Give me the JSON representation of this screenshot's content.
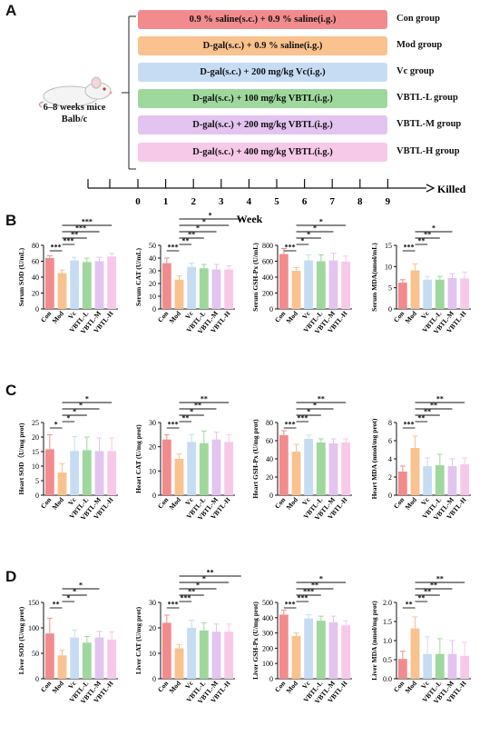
{
  "panels": {
    "a": "A",
    "b": "B",
    "c": "C",
    "d": "D"
  },
  "schematic": {
    "mouse_line1": "6–8 weeks mice",
    "mouse_line2": "Balb/c",
    "groups": [
      {
        "treatment": "0.9 % saline(s.c.) + 0.9 % saline(i.g.)",
        "name": "Con group",
        "color": "#f28b8e"
      },
      {
        "treatment": "D-gal(s.c.) + 0.9 % saline(i.g.)",
        "name": "Mod group",
        "color": "#f9c28e"
      },
      {
        "treatment": "D-gal(s.c.) + 200 mg/kg Vc(i.g.)",
        "name": "Vc group",
        "color": "#c6dcf3"
      },
      {
        "treatment": "D-gal(s.c.) + 100 mg/kg VBTL(i.g.)",
        "name": "VBTL-L group",
        "color": "#9fd89d"
      },
      {
        "treatment": "D-gal(s.c.) + 200 mg/kg VBTL(i.g.)",
        "name": "VBTL-M group",
        "color": "#e3c4f0"
      },
      {
        "treatment": "D-gal(s.c.) + 400 mg/kg VBTL(i.g.)",
        "name": "VBTL-H group",
        "color": "#f7c9e8"
      }
    ],
    "timeline": {
      "ticks": [
        "0",
        "1",
        "2",
        "3",
        "4",
        "5",
        "6",
        "7",
        "8",
        "9"
      ],
      "end_label": "Killed",
      "xlabel": "Week"
    }
  },
  "chart_data": [
    {
      "type": "bar",
      "row": "B",
      "ylabel": "Serum SOD (U/mL)",
      "ylim": [
        0,
        80
      ],
      "yticks": [
        0,
        20,
        40,
        60,
        80
      ],
      "categories": [
        "Con",
        "Mod",
        "Vc",
        "VBTL-L",
        "VBTL-M",
        "VBTL-H"
      ],
      "values": [
        64,
        45,
        61,
        59,
        60,
        66
      ],
      "errors": [
        3,
        4,
        4,
        5,
        5,
        4
      ],
      "annotations": [
        "***",
        "***",
        "**",
        "***",
        "***"
      ]
    },
    {
      "type": "bar",
      "row": "B",
      "ylabel": "Serum CAT (U/mL)",
      "ylim": [
        0,
        50
      ],
      "yticks": [
        0,
        10,
        20,
        30,
        40,
        50
      ],
      "categories": [
        "Con",
        "Mod",
        "Vc",
        "VBTL-L",
        "VBTL-M",
        "VBTL-H"
      ],
      "values": [
        36,
        23,
        33,
        32,
        31,
        31
      ],
      "errors": [
        4,
        3,
        3,
        3,
        4,
        3
      ],
      "annotations": [
        "***",
        "**",
        "**",
        "*",
        "*",
        "*"
      ]
    },
    {
      "type": "bar",
      "row": "B",
      "ylabel": "Serum GSH-Px (U/mL)",
      "ylim": [
        0,
        800
      ],
      "yticks": [
        0,
        200,
        400,
        600,
        800
      ],
      "categories": [
        "Con",
        "Mod",
        "Vc",
        "VBTL-L",
        "VBTL-M",
        "VBTL-H"
      ],
      "values": [
        690,
        480,
        610,
        600,
        610,
        595
      ],
      "errors": [
        70,
        40,
        70,
        80,
        90,
        70
      ],
      "annotations": [
        "***",
        "*",
        "*",
        "*",
        "*"
      ]
    },
    {
      "type": "bar",
      "row": "B",
      "ylabel": "Serum MDA(nmol/mL)",
      "ylim": [
        0,
        15
      ],
      "yticks": [
        0,
        5,
        10,
        15
      ],
      "categories": [
        "Con",
        "Mod",
        "Vc",
        "VBTL-L",
        "VBTL-M",
        "VBTL-H"
      ],
      "values": [
        6.2,
        9.1,
        6.9,
        6.9,
        7.3,
        7.2
      ],
      "errors": [
        0.7,
        1.5,
        0.8,
        0.8,
        1.0,
        1.5
      ],
      "annotations": [
        "***",
        "**",
        "**",
        "*"
      ]
    },
    {
      "type": "bar",
      "row": "C",
      "ylabel": "Heart SOD（U/mg prot)",
      "ylim": [
        0,
        25
      ],
      "yticks": [
        0,
        5,
        10,
        15,
        20,
        25
      ],
      "categories": [
        "Con",
        "Mod",
        "Vc",
        "VBTL-L",
        "VBTL-M",
        "VBTL-H"
      ],
      "values": [
        15.8,
        7.8,
        15.2,
        15.5,
        15.2,
        15.2
      ],
      "errors": [
        5,
        3,
        5,
        4.5,
        4.5,
        4.5
      ],
      "annotations": [
        "*",
        "*",
        "*",
        "*",
        "*"
      ]
    },
    {
      "type": "bar",
      "row": "C",
      "ylabel": "Heart CAT (U/mg prot)",
      "ylim": [
        0,
        30
      ],
      "yticks": [
        0,
        10,
        20,
        30
      ],
      "categories": [
        "Con",
        "Mod",
        "Vc",
        "VBTL-L",
        "VBTL-M",
        "VBTL-H"
      ],
      "values": [
        23,
        15,
        22,
        21.5,
        23,
        22
      ],
      "errors": [
        2,
        2,
        3,
        5,
        3,
        3
      ],
      "annotations": [
        "***",
        "**",
        "*",
        "**",
        "**"
      ]
    },
    {
      "type": "bar",
      "row": "C",
      "ylabel": "Heart GSH-Px (U/mg prot)",
      "ylim": [
        0,
        80
      ],
      "yticks": [
        0,
        20,
        40,
        60,
        80
      ],
      "categories": [
        "Con",
        "Mod",
        "Vc",
        "VBTL-L",
        "VBTL-M",
        "VBTL-H"
      ],
      "values": [
        66,
        48,
        62,
        58,
        57,
        58
      ],
      "errors": [
        5,
        8,
        4,
        4,
        5,
        4
      ],
      "annotations": [
        "***",
        "***",
        "*",
        "*",
        "**"
      ]
    },
    {
      "type": "bar",
      "row": "C",
      "ylabel": "Heart MDA (nmol/mg prot)",
      "ylim": [
        0,
        8
      ],
      "yticks": [
        0,
        2,
        4,
        6,
        8
      ],
      "categories": [
        "Con",
        "Mod",
        "Vc",
        "VBTL-L",
        "VBTL-M",
        "VBTL-H"
      ],
      "values": [
        2.6,
        5.2,
        3.2,
        3.3,
        3.2,
        3.4
      ],
      "errors": [
        0.6,
        1.3,
        0.9,
        1.2,
        0.8,
        0.7
      ],
      "annotations": [
        "***",
        "**",
        "**",
        "**",
        "**"
      ]
    },
    {
      "type": "bar",
      "row": "D",
      "ylabel": "Liver SOD (U/mg prot)",
      "ylim": [
        0,
        150
      ],
      "yticks": [
        0,
        50,
        100,
        150
      ],
      "categories": [
        "Con",
        "Mod",
        "Vc",
        "VBTL-L",
        "VBTL-M",
        "VBTL-H"
      ],
      "values": [
        89,
        46,
        81,
        71,
        81,
        77
      ],
      "errors": [
        30,
        10,
        15,
        12,
        12,
        15
      ],
      "annotations": [
        "**",
        "*",
        "*",
        "*"
      ]
    },
    {
      "type": "bar",
      "row": "D",
      "ylabel": "Liver CAT (U/mg prot)",
      "ylim": [
        0,
        30
      ],
      "yticks": [
        0,
        10,
        20,
        30
      ],
      "categories": [
        "Con",
        "Mod",
        "Vc",
        "VBTL-L",
        "VBTL-M",
        "VBTL-H"
      ],
      "values": [
        22,
        12,
        20,
        19,
        18.5,
        18.5
      ],
      "errors": [
        3,
        1.5,
        3,
        3,
        3,
        3
      ],
      "annotations": [
        "***",
        "***",
        "**",
        "*",
        "*",
        "**"
      ]
    },
    {
      "type": "bar",
      "row": "D",
      "ylabel": "Liver GSH-Px (U/mg prot)",
      "ylim": [
        0,
        500
      ],
      "yticks": [
        0,
        100,
        200,
        300,
        400,
        500
      ],
      "categories": [
        "Con",
        "Mod",
        "Vc",
        "VBTL-L",
        "VBTL-M",
        "VBTL-H"
      ],
      "values": [
        420,
        280,
        395,
        380,
        370,
        350
      ],
      "errors": [
        30,
        20,
        25,
        30,
        40,
        30
      ],
      "annotations": [
        "***",
        "***",
        "***",
        "**",
        "*"
      ]
    },
    {
      "type": "bar",
      "row": "D",
      "ylabel": "Liver MDA (nmol/mg prot)",
      "ylim": [
        0,
        2.0
      ],
      "yticks": [
        "0.0",
        "0.5",
        "1.0",
        "1.5",
        "2.0"
      ],
      "categories": [
        "Con",
        "Mod",
        "Vc",
        "VBTL-L",
        "VBTL-M",
        "VBTL-H"
      ],
      "values": [
        0.52,
        1.32,
        0.65,
        0.65,
        0.65,
        0.6
      ],
      "errors": [
        0.2,
        0.3,
        0.45,
        0.4,
        0.35,
        0.35
      ],
      "annotations": [
        "**",
        "**",
        "**",
        "**",
        "**"
      ]
    }
  ],
  "bar_colors": [
    "#f28b8e",
    "#f9c28e",
    "#c6dcf3",
    "#9fd89d",
    "#e3c4f0",
    "#f7c9e8"
  ]
}
